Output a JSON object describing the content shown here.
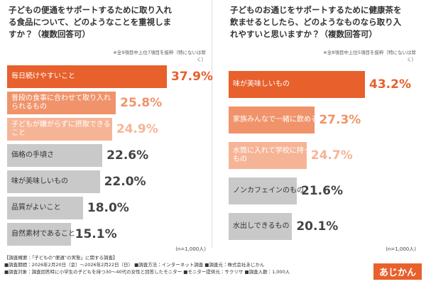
{
  "chart_data": [
    {
      "type": "bar",
      "title": "子どもの便通をサポートするために取り入れる食品について、どのようなことを重視しますか？（複数回答可）",
      "note": "※全9項目中上位7項目を抜粋（特にないは除く）",
      "sample": "(n=1,000人)",
      "categories": [
        "毎日続けやすいこと",
        "普段の食事に合わせて取り入れられるもの",
        "子どもが嫌がらずに摂取できること",
        "価格の手頃さ",
        "味が美味しいもの",
        "品質がよいこと",
        "自然素材であること"
      ],
      "values": [
        37.9,
        25.8,
        24.9,
        22.6,
        22.0,
        18.0,
        15.1
      ],
      "value_labels": [
        "37.9%",
        "25.8%",
        "24.9%",
        "22.6%",
        "22.0%",
        "18.0%",
        "15.1%"
      ],
      "colors": [
        "#e8602c",
        "#f0936a",
        "#f6b496",
        "#c9c9c9",
        "#c9c9c9",
        "#c9c9c9",
        "#c9c9c9"
      ]
    },
    {
      "type": "bar",
      "title": "子どものお通じをサポートするために健康茶を飲ませるとしたら、どのようなものなら取り入れやすいと思いますか？（複数回答可）",
      "note": "※全8項目中上位5項目を抜粋（特にないは除く）",
      "sample": "(n=1,000人)",
      "categories": [
        "味が美味しいもの",
        "家族みんなで一緒に飲めるもの",
        "水筒に入れて学校に持っていけるもの",
        "ノンカフェインのもの",
        "水出しできるもの"
      ],
      "values": [
        43.2,
        27.3,
        24.7,
        21.6,
        20.1
      ],
      "value_labels": [
        "43.2%",
        "27.3%",
        "24.7%",
        "21.6%",
        "20.1%"
      ],
      "colors": [
        "#e8602c",
        "#f0936a",
        "#f6b496",
        "#c9c9c9",
        "#c9c9c9"
      ]
    }
  ],
  "footer": {
    "title": "【調査概要：「子どもの“便通”の実態」に関する調査】",
    "lines": [
      "■調査期間：2026年2月20日（金）～2026年2月22日（日） ■調査方法：インターネット調査 ■調査元：株式会社あじかん",
      "■調査対象：調査回答時に小学生の子どもを持つ30～40代の女性と回答したモニター ■モニター提供元：サクリサ ■調査人数：1,000人"
    ],
    "logo": "あじかん"
  }
}
